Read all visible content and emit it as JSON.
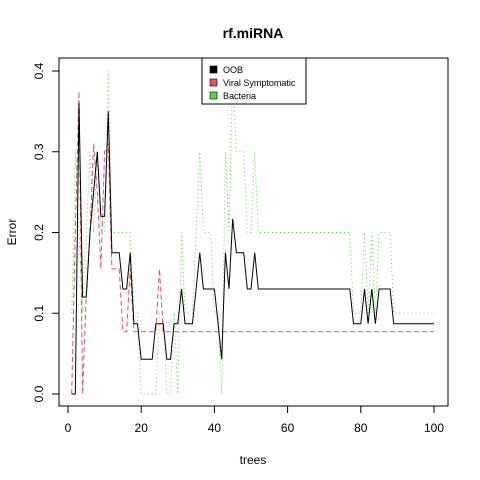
{
  "chart_data": {
    "type": "line",
    "title": "rf.miRNA",
    "xlabel": "trees",
    "ylabel": "Error",
    "xlim": [
      0,
      100
    ],
    "ylim": [
      0,
      0.4
    ],
    "x_ticks": [
      0,
      20,
      40,
      60,
      80,
      100
    ],
    "y_ticks": [
      0.0,
      0.1,
      0.2,
      0.3,
      0.4
    ],
    "x_tick_labels": [
      "0",
      "20",
      "40",
      "60",
      "80",
      "100"
    ],
    "y_tick_labels": [
      "0.0",
      "0.1",
      "0.2",
      "0.3",
      "0.4"
    ],
    "grid": false,
    "legend_position": "top-center",
    "series": [
      {
        "name": "OOB",
        "color": "#000000",
        "style": "solid",
        "points": [
          [
            1,
            0
          ],
          [
            2,
            0
          ],
          [
            3,
            0.36
          ],
          [
            4,
            0.12
          ],
          [
            5,
            0.12
          ],
          [
            6,
            0.2
          ],
          [
            7,
            0.25
          ],
          [
            8,
            0.3
          ],
          [
            9,
            0.22
          ],
          [
            10,
            0.22
          ],
          [
            11,
            0.35
          ],
          [
            12,
            0.175
          ],
          [
            13,
            0.175
          ],
          [
            14,
            0.175
          ],
          [
            15,
            0.13
          ],
          [
            16,
            0.13
          ],
          [
            17,
            0.175
          ],
          [
            18,
            0.087
          ],
          [
            19,
            0.087
          ],
          [
            20,
            0.043
          ],
          [
            21,
            0.043
          ],
          [
            22,
            0.043
          ],
          [
            23,
            0.043
          ],
          [
            24,
            0.087
          ],
          [
            25,
            0.087
          ],
          [
            26,
            0.087
          ],
          [
            27,
            0.043
          ],
          [
            28,
            0.043
          ],
          [
            29,
            0.087
          ],
          [
            30,
            0.087
          ],
          [
            31,
            0.13
          ],
          [
            32,
            0.087
          ],
          [
            33,
            0.087
          ],
          [
            34,
            0.087
          ],
          [
            35,
            0.13
          ],
          [
            36,
            0.175
          ],
          [
            37,
            0.13
          ],
          [
            38,
            0.13
          ],
          [
            39,
            0.13
          ],
          [
            40,
            0.13
          ],
          [
            41,
            0.087
          ],
          [
            42,
            0.043
          ],
          [
            43,
            0.175
          ],
          [
            44,
            0.13
          ],
          [
            45,
            0.217
          ],
          [
            46,
            0.175
          ],
          [
            47,
            0.175
          ],
          [
            48,
            0.175
          ],
          [
            49,
            0.13
          ],
          [
            50,
            0.13
          ],
          [
            51,
            0.175
          ],
          [
            52,
            0.13
          ],
          [
            60,
            0.13
          ],
          [
            70,
            0.13
          ],
          [
            77,
            0.13
          ],
          [
            78,
            0.087
          ],
          [
            79,
            0.087
          ],
          [
            80,
            0.087
          ],
          [
            81,
            0.13
          ],
          [
            82,
            0.087
          ],
          [
            83,
            0.13
          ],
          [
            84,
            0.087
          ],
          [
            85,
            0.13
          ],
          [
            86,
            0.13
          ],
          [
            87,
            0.13
          ],
          [
            88,
            0.13
          ],
          [
            89,
            0.087
          ],
          [
            100,
            0.087
          ]
        ]
      },
      {
        "name": "Viral Symptomatic",
        "color": "#df536b",
        "style": "dashed",
        "points": [
          [
            1,
            0
          ],
          [
            2,
            0.2
          ],
          [
            3,
            0.375
          ],
          [
            4,
            0
          ],
          [
            5,
            0.125
          ],
          [
            6,
            0.2
          ],
          [
            7,
            0.31
          ],
          [
            8,
            0.25
          ],
          [
            9,
            0.155
          ],
          [
            10,
            0.3
          ],
          [
            11,
            0.31
          ],
          [
            12,
            0.155
          ],
          [
            13,
            0.155
          ],
          [
            14,
            0.155
          ],
          [
            15,
            0.077
          ],
          [
            16,
            0.077
          ],
          [
            17,
            0.155
          ],
          [
            18,
            0.077
          ],
          [
            19,
            0.077
          ],
          [
            20,
            0.077
          ],
          [
            21,
            0.077
          ],
          [
            24,
            0.077
          ],
          [
            25,
            0.155
          ],
          [
            26,
            0.077
          ],
          [
            30,
            0.077
          ],
          [
            40,
            0.077
          ],
          [
            60,
            0.077
          ],
          [
            80,
            0.077
          ],
          [
            100,
            0.077
          ]
        ]
      },
      {
        "name": "Bacteria",
        "color": "#61d04f",
        "style": "dotted",
        "points": [
          [
            1,
            0.1
          ],
          [
            2,
            0.3
          ],
          [
            3,
            0.2
          ],
          [
            4,
            0.1
          ],
          [
            5,
            0.2
          ],
          [
            6,
            0.3
          ],
          [
            7,
            0.2
          ],
          [
            8,
            0.3
          ],
          [
            9,
            0.2
          ],
          [
            10,
            0.2
          ],
          [
            11,
            0.4
          ],
          [
            12,
            0.2
          ],
          [
            13,
            0.2
          ],
          [
            14,
            0.2
          ],
          [
            15,
            0.2
          ],
          [
            16,
            0.2
          ],
          [
            17,
            0.2
          ],
          [
            18,
            0.1
          ],
          [
            19,
            0.1
          ],
          [
            20,
            0
          ],
          [
            21,
            0
          ],
          [
            22,
            0
          ],
          [
            23,
            0
          ],
          [
            24,
            0
          ],
          [
            25,
            0.1
          ],
          [
            26,
            0.1
          ],
          [
            27,
            0
          ],
          [
            28,
            0
          ],
          [
            29,
            0.1
          ],
          [
            30,
            0
          ],
          [
            31,
            0.2
          ],
          [
            32,
            0.1
          ],
          [
            33,
            0.1
          ],
          [
            34,
            0.1
          ],
          [
            35,
            0.2
          ],
          [
            36,
            0.3
          ],
          [
            37,
            0.2
          ],
          [
            38,
            0.2
          ],
          [
            39,
            0.2
          ],
          [
            40,
            0.1
          ],
          [
            41,
            0.1
          ],
          [
            42,
            0
          ],
          [
            43,
            0.3
          ],
          [
            44,
            0.2
          ],
          [
            45,
            0.4
          ],
          [
            46,
            0.3
          ],
          [
            47,
            0.3
          ],
          [
            48,
            0.3
          ],
          [
            49,
            0.2
          ],
          [
            50,
            0.2
          ],
          [
            51,
            0.3
          ],
          [
            52,
            0.2
          ],
          [
            60,
            0.2
          ],
          [
            70,
            0.2
          ],
          [
            77,
            0.2
          ],
          [
            78,
            0.1
          ],
          [
            79,
            0.1
          ],
          [
            80,
            0.1
          ],
          [
            81,
            0.2
          ],
          [
            82,
            0.1
          ],
          [
            83,
            0.2
          ],
          [
            84,
            0.1
          ],
          [
            85,
            0.2
          ],
          [
            86,
            0.2
          ],
          [
            87,
            0.2
          ],
          [
            88,
            0.2
          ],
          [
            89,
            0.1
          ],
          [
            100,
            0.1
          ]
        ]
      }
    ]
  }
}
